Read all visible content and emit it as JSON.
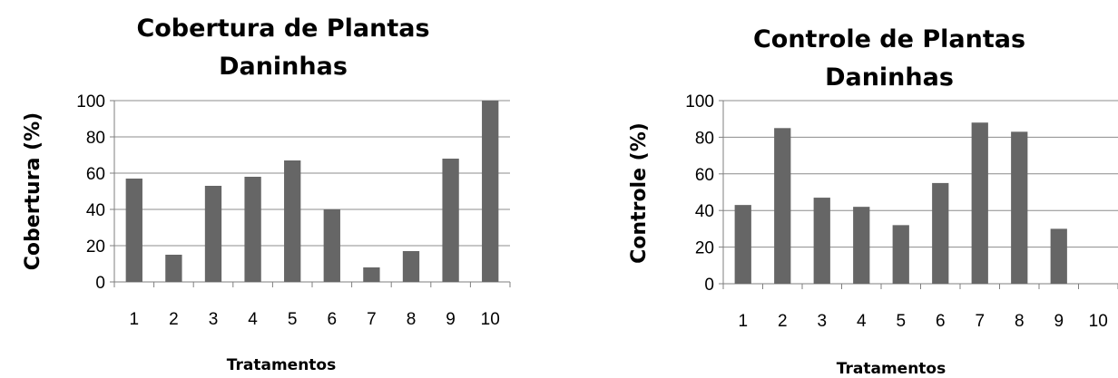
{
  "chart_data": [
    {
      "type": "bar",
      "title": "Cobertura de Plantas Daninhas",
      "title_lines": [
        "Cobertura de Plantas",
        "Daninhas"
      ],
      "xlabel": "Tratamentos",
      "ylabel": "Cobertura (%)",
      "categories": [
        "1",
        "2",
        "3",
        "4",
        "5",
        "6",
        "7",
        "8",
        "9",
        "10"
      ],
      "values": [
        57,
        15,
        53,
        58,
        67,
        40,
        8,
        17,
        68,
        100
      ],
      "ylim": [
        0,
        100
      ],
      "yticks": [
        "0",
        "20",
        "40",
        "60",
        "80",
        "100"
      ],
      "grid": true,
      "bar_color": "#666666"
    },
    {
      "type": "bar",
      "title": "Controle de Plantas Daninhas",
      "title_lines": [
        "Controle de Plantas",
        "Daninhas"
      ],
      "xlabel": "Tratamentos",
      "ylabel": "Controle (%)",
      "categories": [
        "1",
        "2",
        "3",
        "4",
        "5",
        "6",
        "7",
        "8",
        "9",
        "10"
      ],
      "values": [
        43,
        85,
        47,
        42,
        32,
        55,
        88,
        83,
        30,
        0
      ],
      "ylim": [
        0,
        100
      ],
      "yticks": [
        "0",
        "20",
        "40",
        "60",
        "80",
        "100"
      ],
      "grid": true,
      "bar_color": "#666666"
    }
  ]
}
